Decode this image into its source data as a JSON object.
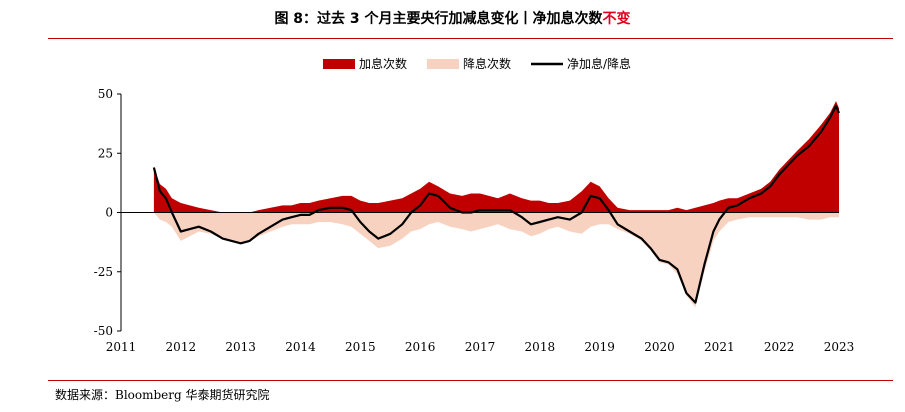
{
  "figure": {
    "title_main": "图 8：过去 3 个月主要央行加减息变化丨净加息次数",
    "title_accent": "不变",
    "source": "数据来源：Bloomberg  华泰期货研究院"
  },
  "chart_data": {
    "type": "area",
    "title": "图 8：过去 3 个月主要央行加减息变化丨净加息次数不变",
    "xlabel": "",
    "ylabel": "",
    "xlim": [
      2011,
      2023
    ],
    "ylim": [
      -50,
      50
    ],
    "x_ticks": [
      "2011",
      "2012",
      "2013",
      "2014",
      "2015",
      "2016",
      "2017",
      "2018",
      "2019",
      "2020",
      "2021",
      "2022",
      "2023"
    ],
    "y_ticks": [
      50,
      25,
      0,
      -25,
      -50
    ],
    "y_tick_labels": [
      "50",
      "25",
      "0",
      "-25",
      "-50"
    ],
    "legend_position": "top-center",
    "x": [
      2011.55,
      2011.65,
      2011.75,
      2011.85,
      2012.0,
      2012.15,
      2012.3,
      2012.5,
      2012.7,
      2012.85,
      2013.0,
      2013.15,
      2013.3,
      2013.5,
      2013.7,
      2013.85,
      2014.0,
      2014.15,
      2014.3,
      2014.5,
      2014.7,
      2014.85,
      2015.0,
      2015.15,
      2015.3,
      2015.5,
      2015.7,
      2015.85,
      2016.0,
      2016.15,
      2016.3,
      2016.5,
      2016.7,
      2016.85,
      2017.0,
      2017.15,
      2017.3,
      2017.5,
      2017.7,
      2017.85,
      2018.0,
      2018.15,
      2018.3,
      2018.5,
      2018.7,
      2018.85,
      2019.0,
      2019.15,
      2019.3,
      2019.5,
      2019.7,
      2019.85,
      2020.0,
      2020.15,
      2020.3,
      2020.45,
      2020.6,
      2020.75,
      2020.9,
      2021.0,
      2021.15,
      2021.3,
      2021.5,
      2021.7,
      2021.85,
      2022.0,
      2022.15,
      2022.3,
      2022.5,
      2022.7,
      2022.85,
      2022.95,
      2023.0
    ],
    "series": [
      {
        "name": "加息次数",
        "color": "#c00000",
        "values": [
          19,
          12,
          10,
          6,
          4,
          3,
          2,
          1,
          0,
          0,
          0,
          0,
          1,
          2,
          3,
          3,
          4,
          4,
          5,
          6,
          7,
          7,
          5,
          4,
          4,
          5,
          6,
          8,
          10,
          13,
          11,
          8,
          7,
          8,
          8,
          7,
          6,
          8,
          6,
          5,
          5,
          4,
          4,
          5,
          9,
          13,
          11,
          6,
          2,
          1,
          1,
          1,
          1,
          1,
          2,
          1,
          2,
          3,
          4,
          5,
          6,
          6,
          8,
          10,
          13,
          18,
          22,
          26,
          31,
          37,
          42,
          47,
          44
        ]
      },
      {
        "name": "降息次数",
        "color": "#f8d2c0",
        "values": [
          0,
          -3,
          -4,
          -6,
          -12,
          -10,
          -8,
          -9,
          -11,
          -12,
          -13,
          -12,
          -10,
          -8,
          -6,
          -5,
          -5,
          -5,
          -4,
          -4,
          -5,
          -6,
          -9,
          -12,
          -15,
          -14,
          -11,
          -8,
          -7,
          -5,
          -4,
          -6,
          -7,
          -8,
          -7,
          -6,
          -5,
          -7,
          -8,
          -10,
          -9,
          -7,
          -6,
          -8,
          -9,
          -6,
          -5,
          -5,
          -7,
          -9,
          -12,
          -16,
          -21,
          -22,
          -26,
          -35,
          -40,
          -25,
          -12,
          -8,
          -4,
          -3,
          -2,
          -2,
          -2,
          -2,
          -2,
          -2,
          -3,
          -3,
          -2,
          -2,
          -2
        ]
      },
      {
        "name": "净加息/降息",
        "color": "#000000",
        "values": [
          19,
          9,
          6,
          0,
          -8,
          -7,
          -6,
          -8,
          -11,
          -12,
          -13,
          -12,
          -9,
          -6,
          -3,
          -2,
          -1,
          -1,
          1,
          2,
          2,
          1,
          -4,
          -8,
          -11,
          -9,
          -5,
          0,
          3,
          8,
          7,
          2,
          0,
          0,
          1,
          1,
          1,
          1,
          -2,
          -5,
          -4,
          -3,
          -2,
          -3,
          0,
          7,
          6,
          1,
          -5,
          -8,
          -11,
          -15,
          -20,
          -21,
          -24,
          -34,
          -38,
          -22,
          -8,
          -3,
          2,
          3,
          6,
          8,
          11,
          16,
          20,
          24,
          28,
          34,
          40,
          45,
          42
        ]
      }
    ]
  }
}
